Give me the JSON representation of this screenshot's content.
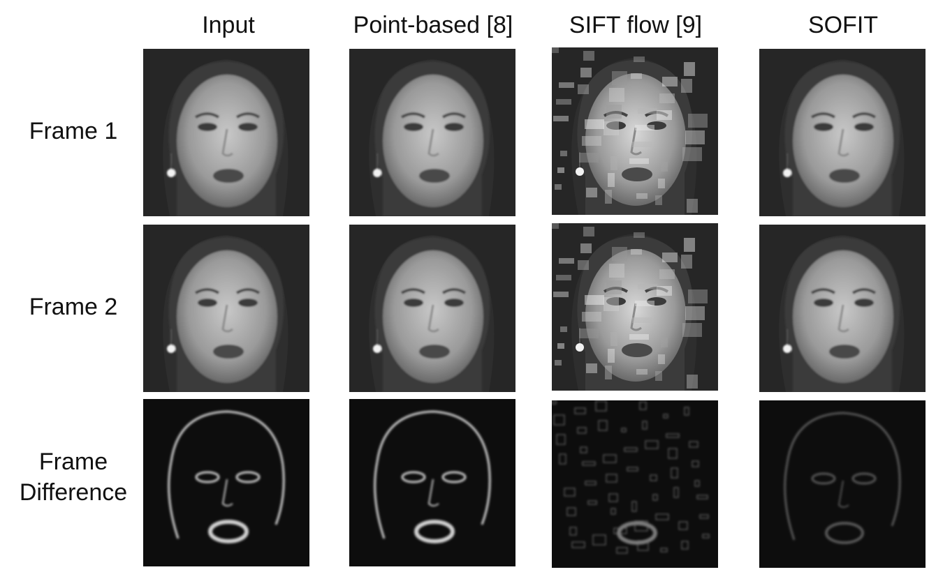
{
  "figure": {
    "columns": [
      "Input",
      "Point-based [8]",
      "SIFT flow [9]",
      "SOFIT"
    ],
    "rows": [
      {
        "label_lines": [
          "Frame 1"
        ],
        "kind": "face"
      },
      {
        "label_lines": [
          "Frame 2"
        ],
        "kind": "face"
      },
      {
        "label_lines": [
          "Frame",
          "Difference"
        ],
        "kind": "difference"
      }
    ]
  }
}
